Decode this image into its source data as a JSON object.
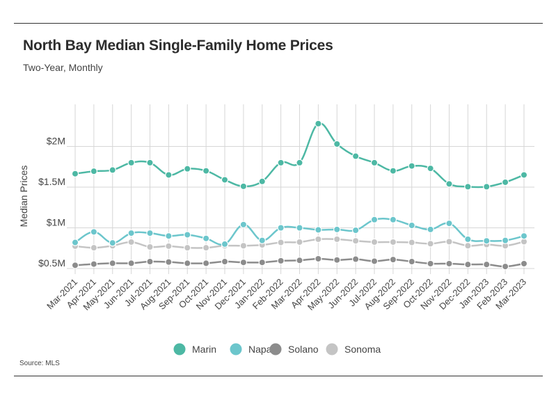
{
  "header": {
    "title": "North Bay Median Single-Family Home Prices",
    "subtitle": "Two-Year, Monthly"
  },
  "footer": {
    "source": "Source: MLS"
  },
  "colors": {
    "Marin": "#4db8a4",
    "Napa": "#6cc6cc",
    "Solano": "#8c8c8c",
    "Sonoma": "#c4c4c4",
    "grid": "#d6d6d6"
  },
  "chart_data": {
    "type": "line",
    "title": "North Bay Median Single-Family Home Prices",
    "subtitle": "Two-Year, Monthly",
    "ylabel": "Median Prices",
    "xlabel": "",
    "ylim": [
      400000,
      2400000
    ],
    "yticks": [
      {
        "value": 500000,
        "label": "$0.5M"
      },
      {
        "value": 1000000,
        "label": "$1M"
      },
      {
        "value": 1500000,
        "label": "$1.5M"
      },
      {
        "value": 2000000,
        "label": "$2M"
      }
    ],
    "grid": true,
    "legend_position": "bottom",
    "categories": [
      "Mar-2021",
      "Apr-2021",
      "May-2021",
      "Jun-2021",
      "Jul-2021",
      "Aug-2021",
      "Sep-2021",
      "Oct-2021",
      "Nov-2021",
      "Dec-2021",
      "Jan-2022",
      "Feb-2022",
      "Mar-2022",
      "Apr-2022",
      "May-2022",
      "Jun-2022",
      "Jul-2022",
      "Aug-2022",
      "Sep-2022",
      "Oct-2022",
      "Nov-2022",
      "Dec-2022",
      "Jan-2023",
      "Feb-2023",
      "Mar-2023"
    ],
    "series": [
      {
        "name": "Marin",
        "values": [
          1665000,
          1695000,
          1710000,
          1800000,
          1800000,
          1650000,
          1725000,
          1700000,
          1590000,
          1510000,
          1570000,
          1800000,
          1800000,
          2280000,
          2030000,
          1880000,
          1800000,
          1700000,
          1760000,
          1730000,
          1540000,
          1505000,
          1505000,
          1560000,
          1650000
        ]
      },
      {
        "name": "Napa",
        "values": [
          820000,
          950000,
          815000,
          935000,
          935000,
          900000,
          915000,
          870000,
          800000,
          1040000,
          845000,
          1000000,
          1000000,
          975000,
          980000,
          970000,
          1100000,
          1100000,
          1030000,
          980000,
          1055000,
          860000,
          840000,
          845000,
          900000
        ]
      },
      {
        "name": "Solano",
        "values": [
          540000,
          555000,
          565000,
          565000,
          585000,
          580000,
          565000,
          565000,
          585000,
          575000,
          575000,
          595000,
          600000,
          620000,
          605000,
          615000,
          590000,
          610000,
          585000,
          560000,
          560000,
          550000,
          550000,
          525000,
          560000
        ]
      },
      {
        "name": "Sonoma",
        "values": [
          775000,
          755000,
          780000,
          825000,
          765000,
          775000,
          755000,
          755000,
          780000,
          780000,
          790000,
          820000,
          825000,
          860000,
          860000,
          840000,
          825000,
          825000,
          820000,
          805000,
          830000,
          780000,
          795000,
          780000,
          830000
        ]
      }
    ]
  }
}
